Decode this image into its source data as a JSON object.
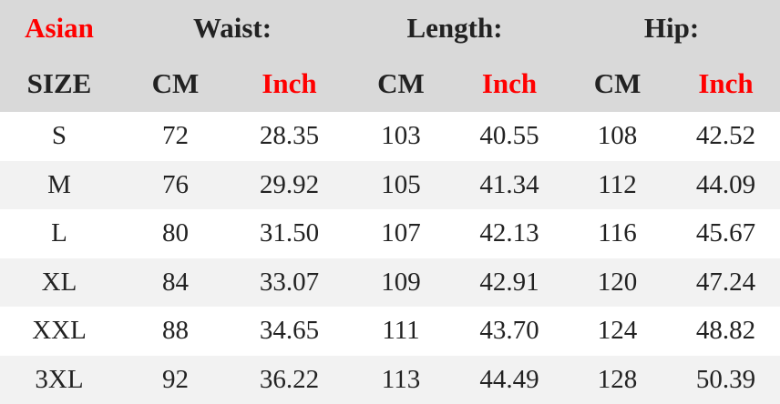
{
  "header": {
    "region": "Asian",
    "groups": [
      "Waist:",
      "Length:",
      "Hip:"
    ],
    "size_label": "SIZE",
    "units": [
      "CM",
      "Inch",
      "CM",
      "Inch",
      "CM",
      "Inch"
    ]
  },
  "colors": {
    "accent": "#ff0000",
    "header_bg": "#d9d9d9",
    "alt_row_bg": "#f2f2f2",
    "text": "#222222"
  },
  "rows": [
    [
      "S",
      "72",
      "28.35",
      "103",
      "40.55",
      "108",
      "42.52"
    ],
    [
      "M",
      "76",
      "29.92",
      "105",
      "41.34",
      "112",
      "44.09"
    ],
    [
      "L",
      "80",
      "31.50",
      "107",
      "42.13",
      "116",
      "45.67"
    ],
    [
      "XL",
      "84",
      "33.07",
      "109",
      "42.91",
      "120",
      "47.24"
    ],
    [
      "XXL",
      "88",
      "34.65",
      "111",
      "43.70",
      "124",
      "48.82"
    ],
    [
      "3XL",
      "92",
      "36.22",
      "113",
      "44.49",
      "128",
      "50.39"
    ]
  ]
}
